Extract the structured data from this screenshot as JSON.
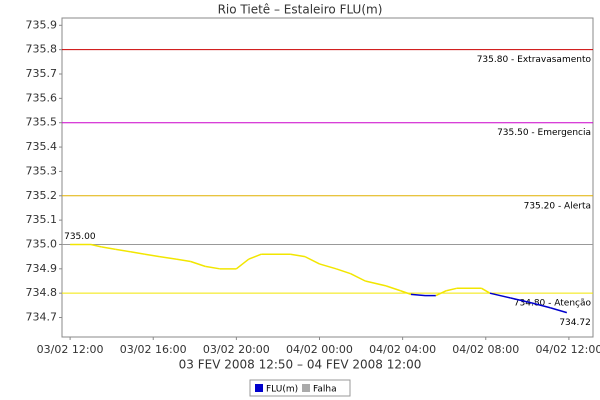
{
  "chart_data": {
    "type": "line",
    "title": "Rio Tietê – Estaleiro FLU(m)",
    "x_label": "03 FEV 2008 12:50 – 04 FEV 2008 12:00",
    "x": [
      0,
      1,
      1.5,
      2.2,
      2.9,
      3.6,
      4.3,
      5.1,
      5.8,
      6.5,
      7.2,
      8.0,
      8.6,
      9.2,
      10.6,
      11.3,
      12.0,
      12.8,
      13.5,
      14.2,
      15.2,
      15.9,
      16.4,
      17.1,
      17.6,
      18.1,
      18.6,
      19.8,
      20.2,
      21.2,
      22.2,
      23.1,
      23.9
    ],
    "values": [
      735.0,
      735.0,
      734.99,
      734.98,
      734.97,
      734.96,
      734.95,
      734.94,
      734.93,
      734.91,
      734.9,
      734.9,
      734.94,
      734.96,
      734.96,
      734.95,
      734.92,
      734.9,
      734.88,
      734.85,
      734.83,
      734.81,
      734.795,
      734.79,
      734.79,
      734.81,
      734.82,
      734.82,
      734.8,
      734.78,
      734.76,
      734.74,
      734.72
    ],
    "value_labels": [
      "735.00",
      null,
      null,
      null,
      null,
      null,
      null,
      null,
      null,
      null,
      null,
      null,
      null,
      null,
      null,
      null,
      null,
      null,
      null,
      null,
      null,
      null,
      null,
      null,
      null,
      null,
      null,
      null,
      null,
      null,
      null,
      null,
      "734.72"
    ],
    "zone_threshold": 734.8,
    "color_above": "#f2e600",
    "color_below": "#0000cc",
    "xlim": [
      -0.39,
      25.16
    ],
    "ylim": [
      734.62,
      735.93
    ],
    "xticks": [
      {
        "value": 0,
        "label": "03/02 12:00"
      },
      {
        "value": 4,
        "label": "03/02 16:00"
      },
      {
        "value": 8,
        "label": "03/02 20:00"
      },
      {
        "value": 12,
        "label": "04/02 00:00"
      },
      {
        "value": 16,
        "label": "04/02 04:00"
      },
      {
        "value": 20,
        "label": "04/02 08:00"
      },
      {
        "value": 24,
        "label": "04/02 12:00"
      }
    ],
    "yticks": [
      734.7,
      734.8,
      734.9,
      {
        "value": 735,
        "label": "735.0"
      },
      735.1,
      735.2,
      735.3,
      735.4,
      735.5,
      735.6,
      735.7,
      735.8,
      735.9
    ],
    "reference_lines": [
      {
        "value": 735.8,
        "label": "735.80 - Extravasamento",
        "color": "#cc0000"
      },
      {
        "value": 735.5,
        "label": "735.50 - Emergencia",
        "color": "#cc00cc"
      },
      {
        "value": 735.2,
        "label": "735.20 - Alerta",
        "color": "#e0b000"
      },
      {
        "value": 735.0,
        "color": "#999999"
      },
      {
        "value": 734.8,
        "label": "734.80 - Atenção",
        "color": "#f2e600"
      }
    ],
    "legend": [
      {
        "name": "FLU(m)",
        "color": "#0000cc"
      },
      {
        "name": "Falha",
        "color": "#aaaaaa"
      }
    ]
  }
}
